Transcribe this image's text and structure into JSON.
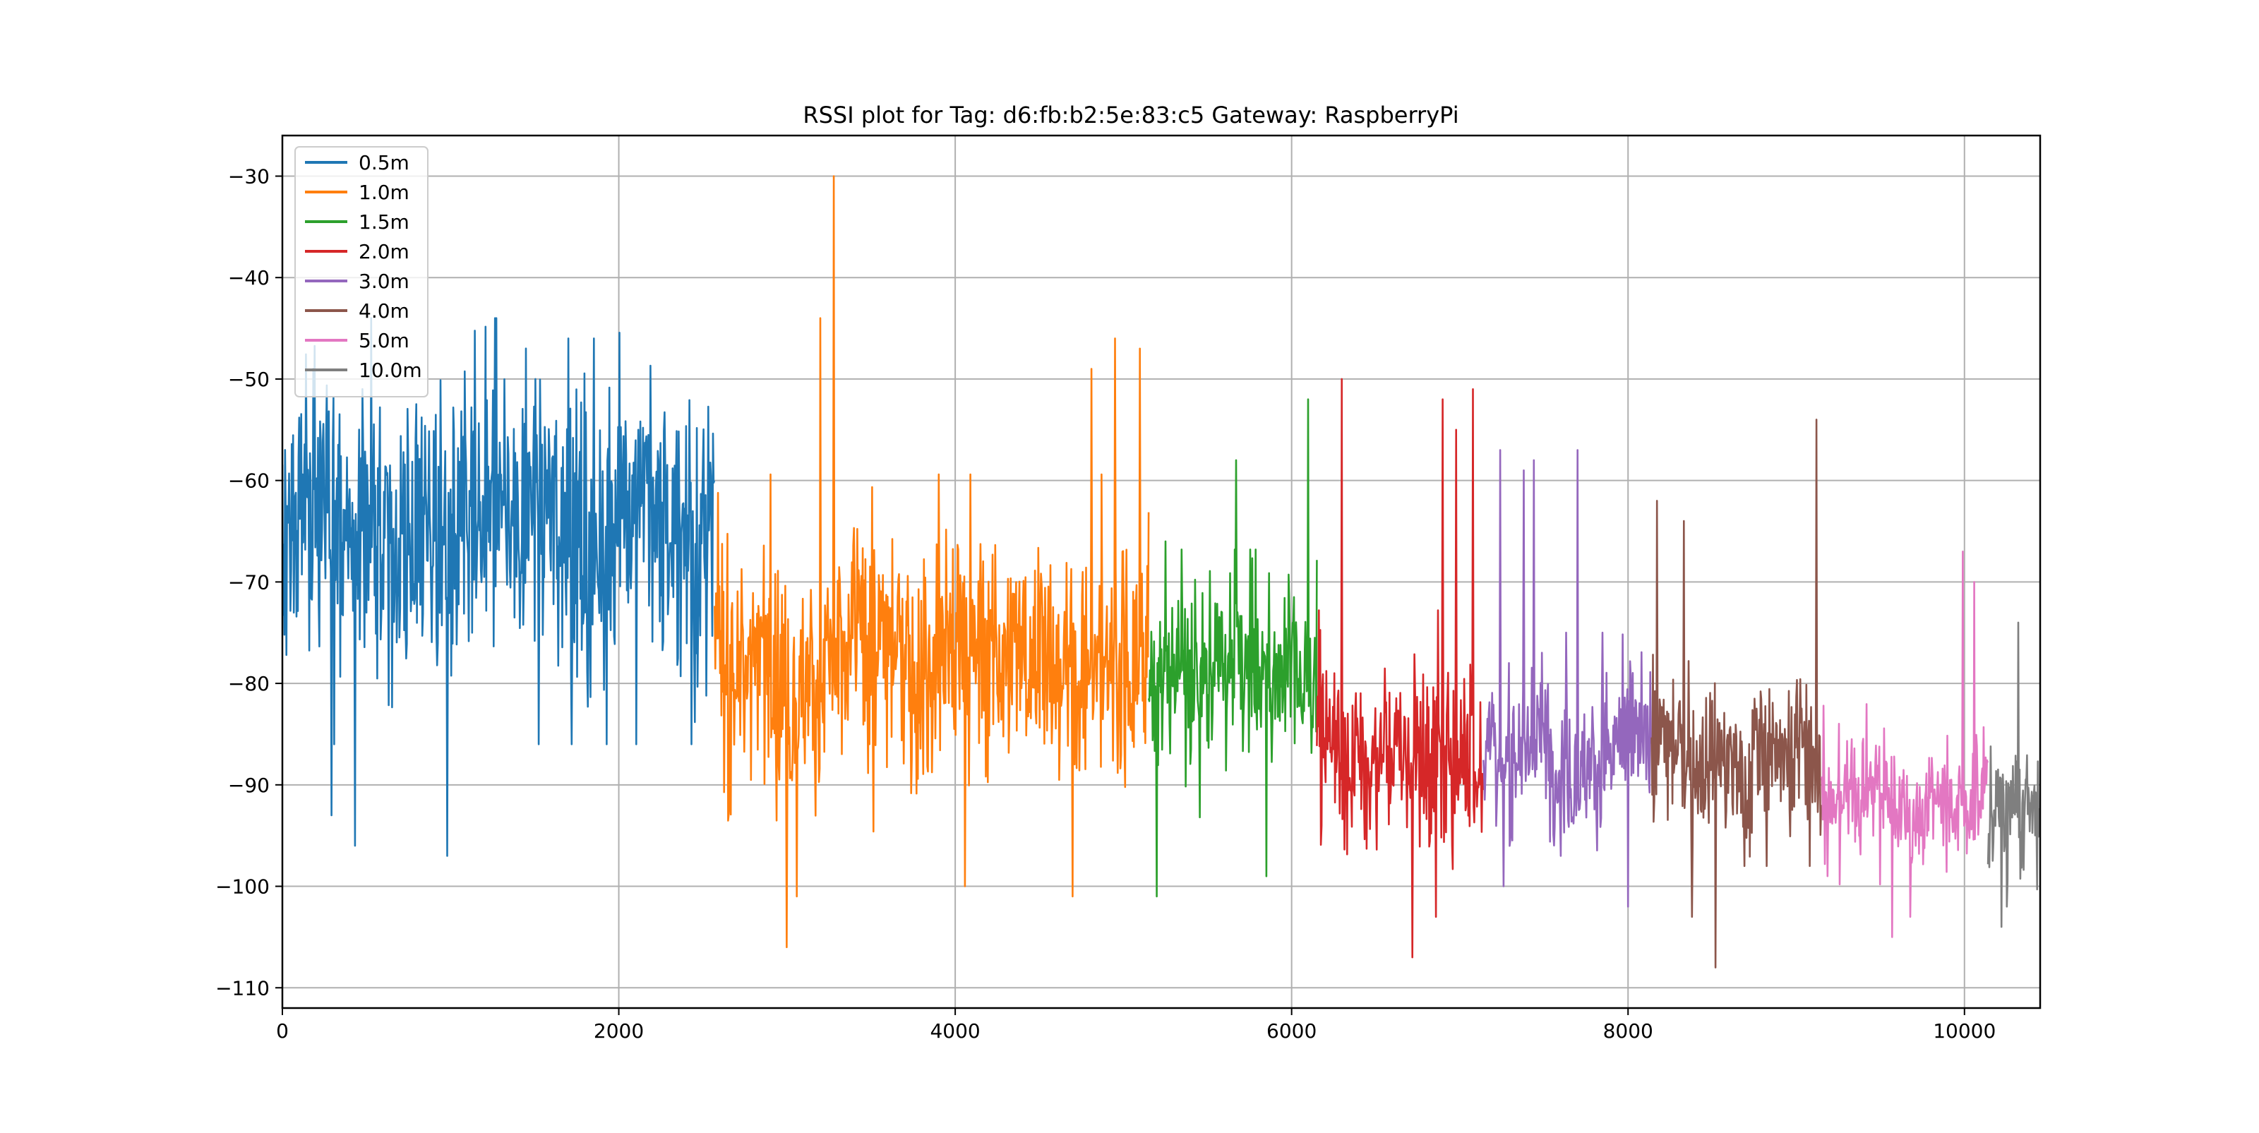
{
  "chart_data": {
    "type": "line",
    "title": "RSSI plot for Tag: d6:fb:b2:5e:83:c5 Gateway: RaspberryPi",
    "xlabel": "",
    "ylabel": "",
    "xlim": [
      0,
      10450
    ],
    "ylim": [
      -112,
      -26
    ],
    "xticks": [
      0,
      2000,
      4000,
      6000,
      8000,
      10000
    ],
    "yticks": [
      -30,
      -40,
      -50,
      -60,
      -70,
      -80,
      -90,
      -100,
      -110
    ],
    "xtick_labels": [
      "0",
      "2000",
      "4000",
      "6000",
      "8000",
      "10000"
    ],
    "ytick_labels": [
      "−30",
      "−40",
      "−50",
      "−60",
      "−70",
      "−80",
      "−90",
      "−100",
      "−110"
    ],
    "grid": true,
    "legend_position": "top-left",
    "series": [
      {
        "name": "0.5m",
        "color": "#1f77b4",
        "x_range": [
          0,
          2570
        ],
        "center": -64,
        "spread": 10,
        "min": -97,
        "max": -44,
        "peaks": [
          [
            1270,
            -44
          ],
          [
            1700,
            -46
          ],
          [
            1850,
            -46
          ],
          [
            980,
            -97
          ],
          [
            430,
            -96
          ],
          [
            290,
            -93
          ]
        ]
      },
      {
        "name": "1.0m",
        "color": "#ff7f0e",
        "x_range": [
          2570,
          5150
        ],
        "center": -77,
        "spread": 8,
        "min": -106,
        "max": -30,
        "peaks": [
          [
            3280,
            -30
          ],
          [
            3200,
            -44
          ],
          [
            4950,
            -46
          ],
          [
            5100,
            -47
          ],
          [
            4810,
            -49
          ],
          [
            3000,
            -106
          ],
          [
            3060,
            -101
          ],
          [
            4700,
            -101
          ],
          [
            4060,
            -100
          ]
        ]
      },
      {
        "name": "1.5m",
        "color": "#2ca02c",
        "x_range": [
          5150,
          6150
        ],
        "center": -80,
        "spread": 6,
        "min": -101,
        "max": -52,
        "peaks": [
          [
            6100,
            -52
          ],
          [
            5670,
            -58
          ],
          [
            5250,
            -66
          ],
          [
            5200,
            -101
          ],
          [
            5850,
            -99
          ]
        ]
      },
      {
        "name": "2.0m",
        "color": "#d62728",
        "x_range": [
          6150,
          7140
        ],
        "center": -86,
        "spread": 6,
        "min": -107,
        "max": -50,
        "peaks": [
          [
            6300,
            -50
          ],
          [
            7080,
            -51
          ],
          [
            6900,
            -52
          ],
          [
            6980,
            -55
          ],
          [
            6720,
            -107
          ],
          [
            6860,
            -103
          ]
        ]
      },
      {
        "name": "3.0m",
        "color": "#9467bd",
        "x_range": [
          7140,
          8140
        ],
        "center": -86,
        "spread": 5,
        "min": -102,
        "max": -56,
        "peaks": [
          [
            7240,
            -57
          ],
          [
            7700,
            -57
          ],
          [
            7380,
            -59
          ],
          [
            7440,
            -58
          ],
          [
            7260,
            -100
          ],
          [
            8000,
            -102
          ]
        ]
      },
      {
        "name": "4.0m",
        "color": "#8c564b",
        "x_range": [
          8140,
          9150
        ],
        "center": -87,
        "spread": 5,
        "min": -108,
        "max": -54,
        "peaks": [
          [
            9120,
            -54
          ],
          [
            8170,
            -62
          ],
          [
            8330,
            -64
          ],
          [
            8520,
            -108
          ],
          [
            8380,
            -103
          ]
        ]
      },
      {
        "name": "5.0m",
        "color": "#e377c2",
        "x_range": [
          9150,
          10140
        ],
        "center": -91,
        "spread": 4,
        "min": -105,
        "max": -67,
        "peaks": [
          [
            9990,
            -67
          ],
          [
            10060,
            -70
          ],
          [
            9570,
            -105
          ],
          [
            9680,
            -103
          ]
        ]
      },
      {
        "name": "10.0m",
        "color": "#7f7f7f",
        "x_range": [
          10140,
          10450
        ],
        "center": -93,
        "spread": 4,
        "min": -104,
        "max": -74,
        "peaks": [
          [
            10320,
            -74
          ],
          [
            10220,
            -104
          ],
          [
            10250,
            -102
          ]
        ]
      }
    ]
  }
}
